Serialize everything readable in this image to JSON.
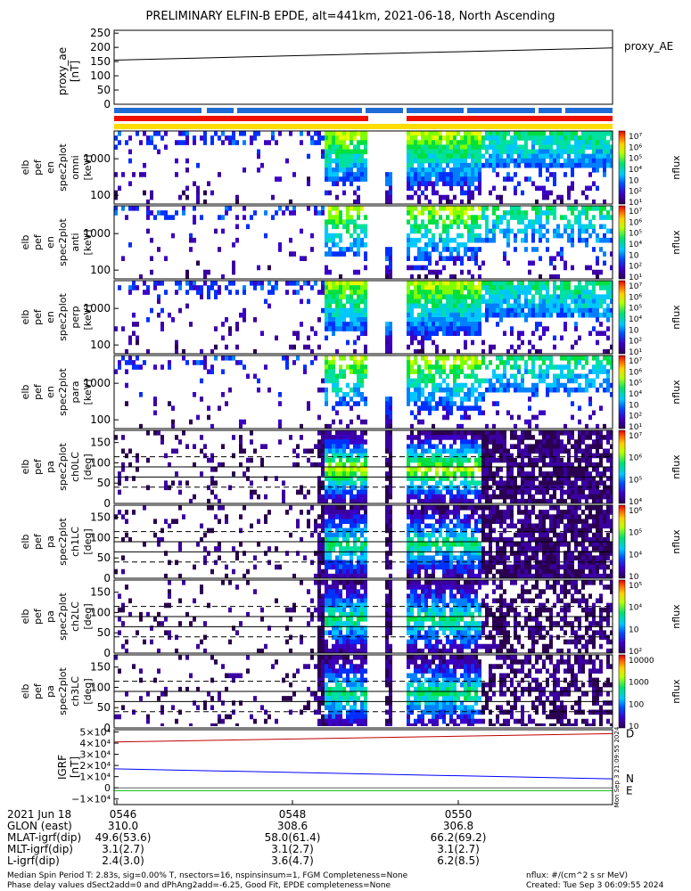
{
  "title": "PRELIMINARY ELFIN-B EPDE, alt=441km, 2021-06-18, North Ascending",
  "chart_data": [
    {
      "type": "line",
      "panel": "proxy_ae",
      "ylabel": [
        "proxy_ae",
        "[nT]"
      ],
      "ylim": [
        0,
        260
      ],
      "yticks": [
        "250",
        "200",
        "150",
        "100",
        "50",
        "0"
      ],
      "ytick_values": [
        250,
        200,
        150,
        100,
        50,
        0
      ],
      "legend": "proxy_AE",
      "series": [
        {
          "name": "proxy_AE",
          "x": [
            0,
            1
          ],
          "values": [
            155,
            198
          ]
        }
      ]
    },
    {
      "type": "heatmap",
      "panel": "elb pef en spec2plot omni",
      "ylabel": [
        "elb",
        "pef",
        "en",
        "spec2plot",
        "omni",
        "[keV]"
      ],
      "yscale": "log",
      "yticks": [
        "1000",
        "100"
      ],
      "colorbar": {
        "label": "nflux",
        "ticks": [
          "10⁷",
          "10⁶",
          "10⁵",
          "10⁴",
          "10⁳",
          "10²",
          "10¹"
        ]
      }
    },
    {
      "type": "heatmap",
      "panel": "elb pef en spec2plot anti",
      "ylabel": [
        "elb",
        "pef",
        "en",
        "spec2plot",
        "anti",
        "[keV]"
      ],
      "yscale": "log",
      "yticks": [
        "1000",
        "100"
      ],
      "colorbar": {
        "label": "nflux",
        "ticks": [
          "10⁷",
          "10⁶",
          "10⁵",
          "10⁴",
          "10⁳",
          "10²",
          "10¹"
        ]
      }
    },
    {
      "type": "heatmap",
      "panel": "elb pef en spec2plot perp",
      "ylabel": [
        "elb",
        "pef",
        "en",
        "spec2plot",
        "perp",
        "[keV]"
      ],
      "yscale": "log",
      "yticks": [
        "1000",
        "100"
      ],
      "colorbar": {
        "label": "nflux",
        "ticks": [
          "10⁷",
          "10⁶",
          "10⁵",
          "10⁴",
          "10⁳",
          "10²",
          "10¹"
        ]
      }
    },
    {
      "type": "heatmap",
      "panel": "elb pef en spec2plot para",
      "ylabel": [
        "elb",
        "pef",
        "en",
        "spec2plot",
        "para",
        "[keV]"
      ],
      "yscale": "log",
      "yticks": [
        "1000",
        "100"
      ],
      "colorbar": {
        "label": "nflux",
        "ticks": [
          "10⁷",
          "10⁶",
          "10⁵",
          "10⁴",
          "10⁳",
          "10²",
          "10¹"
        ]
      }
    },
    {
      "type": "heatmap",
      "panel": "elb pef pa spec2plot ch0LC",
      "ylabel": [
        "elb",
        "pef",
        "pa",
        "spec2plot",
        "ch0LC",
        "[deg]"
      ],
      "ylim": [
        0,
        180
      ],
      "yticks": [
        "150",
        "100",
        "50",
        "0"
      ],
      "colorbar": {
        "label": "nflux",
        "ticks": [
          "10⁷",
          "10⁶",
          "10⁵",
          "10⁴"
        ]
      }
    },
    {
      "type": "heatmap",
      "panel": "elb pef pa spec2plot ch1LC",
      "ylabel": [
        "elb",
        "pef",
        "pa",
        "spec2plot",
        "ch1LC",
        "[deg]"
      ],
      "ylim": [
        0,
        180
      ],
      "yticks": [
        "150",
        "100",
        "50",
        "0"
      ],
      "colorbar": {
        "label": "nflux",
        "ticks": [
          "10⁶",
          "10⁵",
          "10⁴",
          "10⁳"
        ]
      }
    },
    {
      "type": "heatmap",
      "panel": "elb pef pa spec2plot ch2LC",
      "ylabel": [
        "elb",
        "pef",
        "pa",
        "spec2plot",
        "ch2LC",
        "[deg]"
      ],
      "ylim": [
        0,
        180
      ],
      "yticks": [
        "150",
        "100",
        "50",
        "0"
      ],
      "colorbar": {
        "label": "nflux",
        "ticks": [
          "10⁵",
          "10⁴",
          "10⁳",
          "10²"
        ]
      }
    },
    {
      "type": "heatmap",
      "panel": "elb pef pa spec2plot ch3LC",
      "ylabel": [
        "elb",
        "pef",
        "pa",
        "spec2plot",
        "ch3LC",
        "[deg]"
      ],
      "ylim": [
        0,
        180
      ],
      "yticks": [
        "150",
        "100",
        "50",
        "0"
      ],
      "colorbar": {
        "label": "nflux",
        "ticks": [
          "10000",
          "1000",
          "100",
          "10"
        ]
      }
    },
    {
      "type": "line",
      "panel": "IGRF",
      "ylabel": [
        "IGRF",
        "[nT]"
      ],
      "yticks": [
        "5×10⁴",
        "4×10⁴",
        "3×10⁴",
        "2×10⁴",
        "1×10⁴",
        "0",
        "−1×10⁴"
      ],
      "ytick_values": [
        50000,
        40000,
        30000,
        20000,
        10000,
        0,
        -10000
      ],
      "ylim": [
        -15000,
        52000
      ],
      "series": [
        {
          "name": "D",
          "color": "#c00000",
          "x": [
            0,
            1
          ],
          "values": [
            41000,
            48500
          ]
        },
        {
          "name": "N",
          "color": "#0000ff",
          "x": [
            0,
            1
          ],
          "values": [
            17000,
            8000
          ]
        },
        {
          "name": "E",
          "color": "#00c000",
          "x": [
            0,
            1
          ],
          "values": [
            -2500,
            -2500
          ]
        }
      ],
      "side_text": "Mon Sep  3 21:09:55 2024"
    }
  ],
  "x_axis": {
    "ticks": [
      "0546",
      "0548",
      "0550"
    ],
    "rows": [
      {
        "label": "2021 Jun 18",
        "values": [
          "0546",
          "0548",
          "0550"
        ]
      },
      {
        "label": "GLON (east)",
        "values": [
          "310.0",
          "308.6",
          "306.8"
        ]
      },
      {
        "label": "MLAT-igrf(dip)",
        "values": [
          "49.6(53.6)",
          "58.0(61.4)",
          "66.2(69.2)"
        ]
      },
      {
        "label": "MLT-igrf(dip)",
        "values": [
          "3.1(2.7)",
          "3.1(2.7)",
          "3.1(2.7)"
        ]
      },
      {
        "label": "L-igrf(dip)",
        "values": [
          "2.4(3.0)",
          "3.6(4.7)",
          "6.2(8.5)"
        ]
      }
    ]
  },
  "footer": {
    "line1": "Median Spin Period T: 2.83s, sig=0.00% T, nsectors=16, nspinsinsum=1, FGM Completeness=None",
    "line2": "Phase delay values dSect2add=0 and dPhAng2add=-6.25, Good Fit, EPDE completeness=None",
    "units": "nflux: #/(cm^2 s sr MeV)",
    "created": "Created: Tue Sep  3 06:09:55 2024"
  },
  "colors": {
    "ae_bar_blue": "#1e6bd6",
    "red_bar": "#ee1100",
    "yellow_bar": "#ffdd00"
  }
}
